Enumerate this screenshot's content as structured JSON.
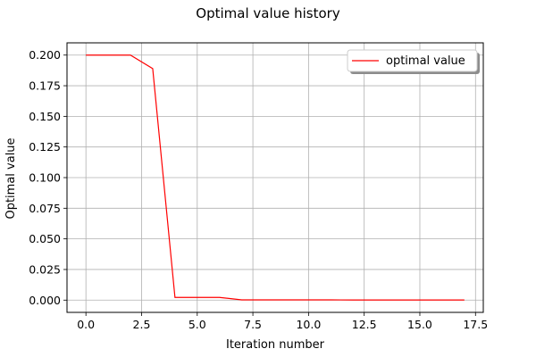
{
  "chart_data": {
    "type": "line",
    "title": "Optimal value history",
    "xlabel": "Iteration number",
    "ylabel": "Optimal value",
    "xlim": [
      -0.85,
      17.85
    ],
    "ylim": [
      -0.01,
      0.21
    ],
    "x_ticks": [
      0.0,
      2.5,
      5.0,
      7.5,
      10.0,
      12.5,
      15.0,
      17.5
    ],
    "x_tick_labels": [
      "0.0",
      "2.5",
      "5.0",
      "7.5",
      "10.0",
      "12.5",
      "15.0",
      "17.5"
    ],
    "y_ticks": [
      0.0,
      0.025,
      0.05,
      0.075,
      0.1,
      0.125,
      0.15,
      0.175,
      0.2
    ],
    "y_tick_labels": [
      "0.000",
      "0.025",
      "0.050",
      "0.075",
      "0.100",
      "0.125",
      "0.150",
      "0.175",
      "0.200"
    ],
    "grid": true,
    "legend_position": "top-right",
    "series": [
      {
        "name": "optimal value",
        "color": "#ff0000",
        "x": [
          0,
          1,
          2,
          3,
          4,
          5,
          6,
          7,
          8,
          9,
          10,
          11,
          12,
          13,
          14,
          15,
          16,
          17
        ],
        "values": [
          0.2,
          0.2,
          0.2,
          0.189,
          0.0022,
          0.0022,
          0.0022,
          0.0002,
          0.0002,
          0.0002,
          0.0002,
          0.0002,
          0.0001,
          0.0001,
          0.0001,
          0.0001,
          0.0001,
          0.0001
        ]
      }
    ]
  }
}
